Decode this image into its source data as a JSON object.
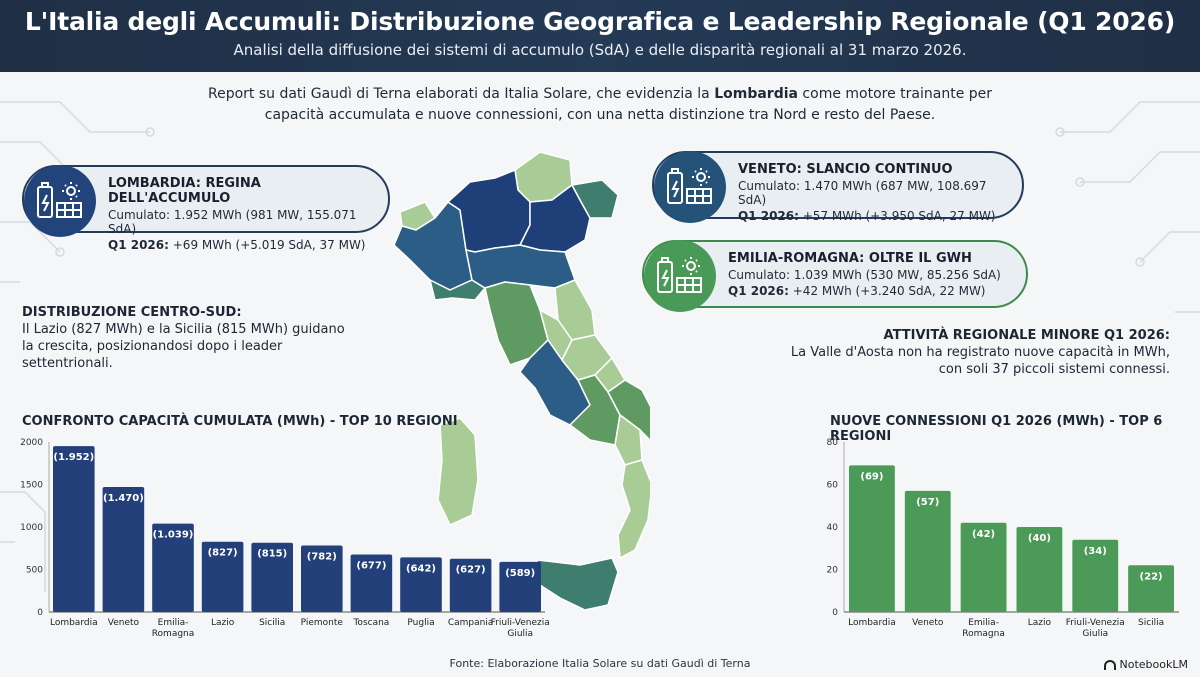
{
  "header": {
    "title": "L'Italia degli Accumuli: Distribuzione Geografica e Leadership Regionale (Q1 2026)",
    "subtitle": "Analisi della diffusione dei sistemi di accumulo (SdA) e delle disparità regionali al 31 marzo 2026."
  },
  "intro": {
    "before": "Report su dati Gaudì di Terna elaborati da Italia Solare, che evidenzia la ",
    "bold": "Lombardia",
    "after": " come motore trainante per capacità accumulata e nuove connessioni, con una netta distinzione tra Nord e resto del Paese."
  },
  "callouts": {
    "lombardia": {
      "title": "LOMBARDIA: REGINA DELL'ACCUMULO",
      "line1": "Cumulato: 1.952 MWh (981 MW, 155.071 SdA)",
      "q_label": "Q1 2026:",
      "q_value": " +69 MWh (+5.019 SdA, 37 MW)"
    },
    "veneto": {
      "title": "VENETO: SLANCIO CONTINUO",
      "line1": "Cumulato: 1.470 MWh (687 MW, 108.697 SdA)",
      "q_label": "Q1 2026:",
      "q_value": " +57 MWh (+3.950 SdA, 27 MW)"
    },
    "emilia": {
      "title": "EMILIA-ROMAGNA: OLTRE IL GWH",
      "line1": "Cumulato: 1.039 MWh (530 MW, 85.256 SdA)",
      "q_label": "Q1 2026:",
      "q_value": " +42 MWh (+3.240 SdA, 22 MW)"
    }
  },
  "notes": {
    "centro_sud": {
      "title": "DISTRIBUZIONE CENTRO-SUD:",
      "text": "Il Lazio (827 MWh) e la Sicilia (815 MWh) guidano la crescita, posizionandosi dopo i leader settentrionali."
    },
    "valle": {
      "title": "ATTIVITÀ REGIONALE MINORE Q1 2026:",
      "text": "La Valle d'Aosta non ha registrato nuove capacità in MWh, con soli 37 piccoli sistemi connessi."
    }
  },
  "chart_data": [
    {
      "type": "bar",
      "title": "CONFRONTO CAPACITÀ CUMULATA (MWh) - TOP 10 REGIONI",
      "categories": [
        "Lombardia",
        "Veneto",
        "Emilia-Romagna",
        "Lazio",
        "Sicilia",
        "Piemonte",
        "Toscana",
        "Puglia",
        "Campania",
        "Friuli-Venezia Giulia"
      ],
      "category_lines": [
        [
          "Lombardia"
        ],
        [
          "Veneto"
        ],
        [
          "Emilia-",
          "Romagna"
        ],
        [
          "Lazio"
        ],
        [
          "Sicilia"
        ],
        [
          "Piemonte"
        ],
        [
          "Toscana"
        ],
        [
          "Puglia"
        ],
        [
          "Campania"
        ],
        [
          "Friuli-Venezia",
          "Giulia"
        ]
      ],
      "values": [
        1952,
        1470,
        1039,
        827,
        815,
        782,
        677,
        642,
        627,
        589
      ],
      "value_labels": [
        "(1.952)",
        "(1.470)",
        "(1.039)",
        "(827)",
        "(815)",
        "(782)",
        "(677)",
        "(642)",
        "(627)",
        "(589)"
      ],
      "ylim": [
        0,
        2000
      ],
      "yticks": [
        "0",
        "500",
        "1000",
        "1500",
        "2000"
      ],
      "ytick_values": [
        0,
        500,
        1000,
        1500,
        2000
      ],
      "color": "#23407a",
      "grid": false
    },
    {
      "type": "bar",
      "title": "NUOVE CONNESSIONI Q1 2026 (MWh) - TOP 6 REGIONI",
      "categories": [
        "Lombardia",
        "Veneto",
        "Emilia-Romagna",
        "Lazio",
        "Friuli-Venezia Giulia",
        "Sicilia"
      ],
      "category_lines": [
        [
          "Lombardia"
        ],
        [
          "Veneto"
        ],
        [
          "Emilia-",
          "Romagna"
        ],
        [
          "Lazio"
        ],
        [
          "Friuli-Venezia",
          "Giulia"
        ],
        [
          "Sicilia"
        ]
      ],
      "values": [
        69,
        57,
        42,
        40,
        34,
        22
      ],
      "value_labels": [
        "(69)",
        "(57)",
        "(42)",
        "(40)",
        "(34)",
        "(22)"
      ],
      "ylim": [
        0,
        80
      ],
      "yticks": [
        "0",
        "20",
        "40",
        "60",
        "80"
      ],
      "ytick_values": [
        0,
        20,
        40,
        60,
        80
      ],
      "color": "#4c9a58",
      "grid": false
    }
  ],
  "footer": {
    "source": "Fonte: Elaborazione Italia Solare su dati Gaudì di Terna"
  },
  "brand": {
    "name": "NotebookLM"
  },
  "colors": {
    "dark_blue": "#1f3f78",
    "mid_blue": "#2c5d86",
    "teal": "#3f7e6e",
    "green": "#5f9a63",
    "light_green": "#a9cc97"
  }
}
